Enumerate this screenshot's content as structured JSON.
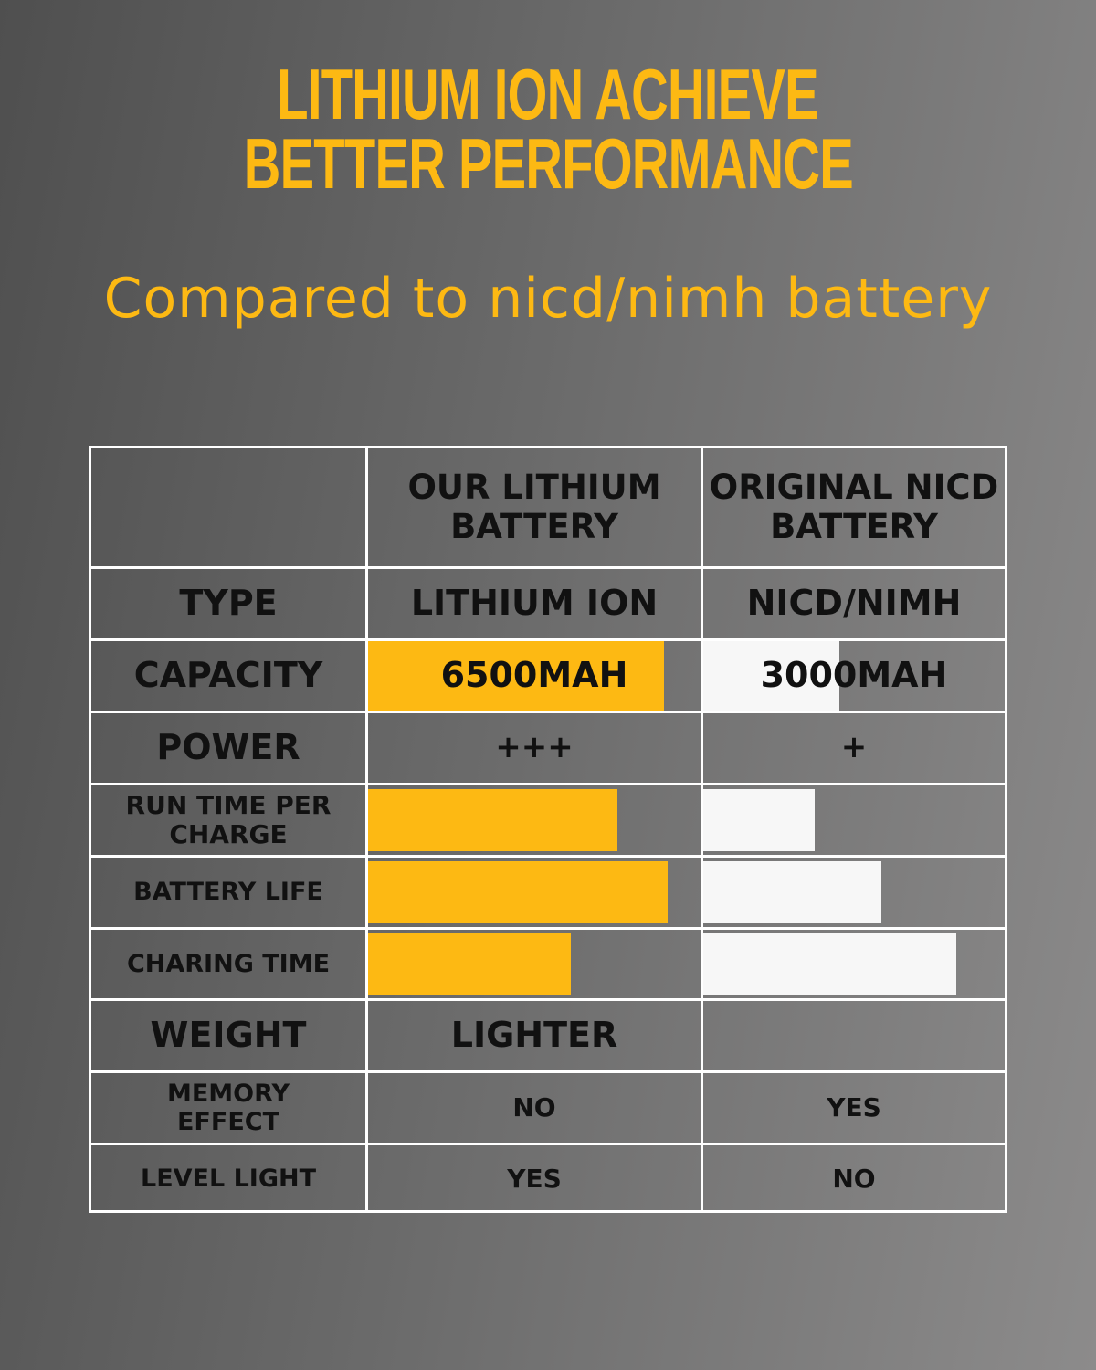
{
  "header": {
    "title_line1": "LITHIUM ION ACHIEVE",
    "title_line2": "BETTER PERFORMANCE",
    "subtitle": "Compared to nicd/nimh battery"
  },
  "colors": {
    "accent": "#fdb913",
    "comparison": "#f7f7f7",
    "text": "#111111"
  },
  "table": {
    "columns": [
      "",
      "OUR LITHIUM BATTERY",
      "ORIGINAL NICD BATTERY"
    ],
    "rows": [
      {
        "label": "TYPE",
        "ours": "LITHIUM ION",
        "original": "NICD/NIMH"
      },
      {
        "label": "CAPACITY",
        "ours": "6500MAH",
        "original": "3000MAH",
        "ours_level": 0.89,
        "original_level": 0.45
      },
      {
        "label": "POWER",
        "ours": "+++",
        "original": "+"
      },
      {
        "label": "RUN TIME PER CHARGE",
        "ours": "",
        "original": "",
        "ours_level": 0.75,
        "original_level": 0.37
      },
      {
        "label": "BATTERY LIFE",
        "ours": "",
        "original": "",
        "ours_level": 0.9,
        "original_level": 0.59
      },
      {
        "label": "CHARING TIME",
        "ours": "",
        "original": "",
        "ours_level": 0.61,
        "original_level": 0.84
      },
      {
        "label": "WEIGHT",
        "ours": "LIGHTER",
        "original": ""
      },
      {
        "label": "MEMORY EFFECT",
        "ours": "NO",
        "original": "YES"
      },
      {
        "label": "LEVEL LIGHT",
        "ours": "YES",
        "original": "NO"
      }
    ]
  }
}
